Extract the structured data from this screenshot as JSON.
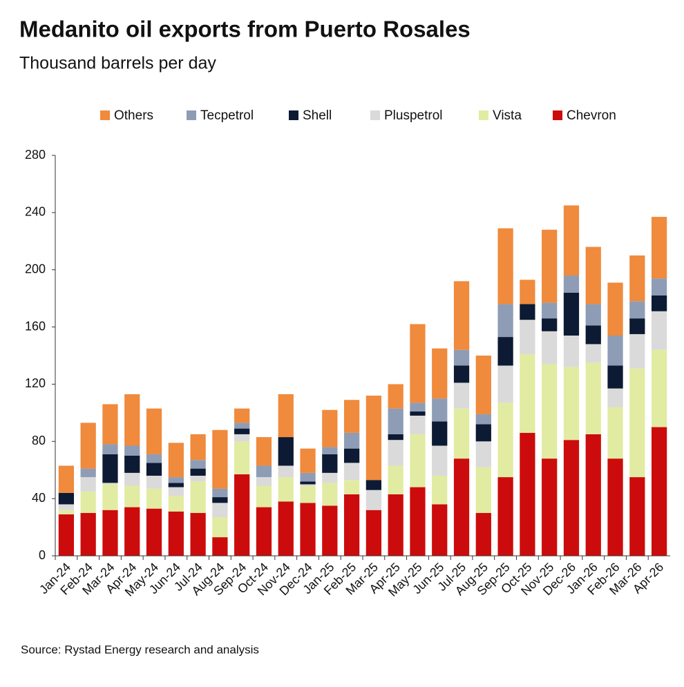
{
  "chart_data": {
    "type": "stacked-bar",
    "title": "Medanito oil exports from Puerto Rosales",
    "subtitle": "Thousand barrels per day",
    "source": "Source: Rystad Energy research and analysis",
    "categories": [
      "Jan-24",
      "Feb-24",
      "Mar-24",
      "Apr-24",
      "May-24",
      "Jun-24",
      "Jul-24",
      "Aug-24",
      "Sep-24",
      "Oct-24",
      "Nov-24",
      "Dec-24",
      "Jan-25",
      "Feb-25",
      "Mar-25",
      "Apr-25",
      "May-25",
      "Jun-25",
      "Jul-25",
      "Aug-25",
      "Sep-25",
      "Oct-25",
      "Nov-25",
      "Dec-26",
      "Jan-26",
      "Feb-26",
      "Mar-26",
      "Apr-26"
    ],
    "series": [
      {
        "name": "Others",
        "color": "#f08a3c",
        "values": [
          19,
          32,
          28,
          36,
          32,
          24,
          18,
          41,
          10,
          20,
          30,
          17,
          26,
          23,
          59,
          17,
          55,
          35,
          48,
          41,
          53,
          17,
          51,
          49,
          40,
          37,
          32,
          43
        ]
      },
      {
        "name": "Tecpetrol",
        "color": "#8e9db5",
        "values": [
          0,
          6,
          7,
          7,
          6,
          4,
          6,
          6,
          4,
          8,
          0,
          6,
          5,
          11,
          0,
          18,
          6,
          16,
          11,
          7,
          23,
          0,
          11,
          12,
          15,
          21,
          12,
          12
        ]
      },
      {
        "name": "Shell",
        "color": "#0d1a33",
        "values": [
          8,
          0,
          20,
          12,
          9,
          3,
          5,
          4,
          4,
          0,
          20,
          2,
          13,
          10,
          7,
          4,
          3,
          17,
          12,
          12,
          20,
          11,
          9,
          30,
          13,
          16,
          11,
          11
        ]
      },
      {
        "name": "Pluspetrol",
        "color": "#dadada",
        "values": [
          4,
          10,
          1,
          9,
          9,
          6,
          4,
          10,
          5,
          6,
          8,
          1,
          7,
          12,
          14,
          18,
          13,
          21,
          18,
          18,
          26,
          24,
          23,
          22,
          13,
          13,
          24,
          27
        ]
      },
      {
        "name": "Vista",
        "color": "#e2eba2",
        "values": [
          3,
          15,
          18,
          15,
          14,
          11,
          22,
          14,
          23,
          15,
          17,
          12,
          16,
          10,
          0,
          20,
          37,
          20,
          35,
          32,
          52,
          55,
          66,
          51,
          50,
          36,
          76,
          54
        ]
      },
      {
        "name": "Chevron",
        "color": "#cc0c0c",
        "values": [
          29,
          30,
          32,
          34,
          33,
          31,
          30,
          13,
          57,
          34,
          38,
          37,
          35,
          43,
          32,
          43,
          48,
          36,
          68,
          30,
          55,
          86,
          68,
          81,
          85,
          68,
          55,
          90
        ]
      }
    ],
    "ylim": [
      0,
      280
    ],
    "yticks": [
      0,
      40,
      80,
      120,
      160,
      200,
      240,
      280
    ]
  }
}
